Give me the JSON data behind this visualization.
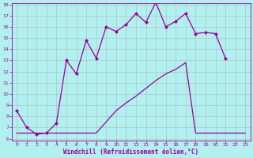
{
  "xlabel": "Windchill (Refroidissement éolien,°C)",
  "x_straight": [
    0,
    1,
    2,
    3,
    4,
    5,
    6,
    7,
    8,
    9,
    10,
    11,
    12,
    13,
    14,
    15,
    16,
    17,
    18,
    19,
    20,
    21,
    22,
    23
  ],
  "y_straight": [
    6.5,
    6.5,
    6.5,
    6.5,
    6.5,
    6.5,
    6.5,
    6.5,
    6.5,
    7.5,
    8.5,
    9.2,
    9.8,
    10.5,
    11.2,
    11.8,
    12.2,
    12.8,
    6.5,
    6.5,
    6.5,
    6.5,
    6.5,
    6.5
  ],
  "x_wavy": [
    0,
    1,
    2,
    3,
    4,
    5,
    6,
    7,
    8,
    9,
    10,
    11,
    12,
    13,
    14,
    15,
    16,
    17,
    18,
    19,
    20,
    21
  ],
  "y_wavy": [
    8.5,
    7.0,
    6.4,
    6.5,
    7.4,
    13.0,
    11.8,
    14.8,
    13.2,
    16.0,
    15.6,
    16.2,
    17.2,
    16.4,
    18.2,
    16.0,
    16.5,
    17.2,
    15.4,
    15.5,
    15.4,
    13.2
  ],
  "line_color": "#990099",
  "bg_color": "#b2f0f0",
  "grid_color": "#aaaaaa",
  "ylim": [
    6,
    18
  ],
  "xlim": [
    -0.5,
    23.5
  ],
  "yticks": [
    6,
    7,
    8,
    9,
    10,
    11,
    12,
    13,
    14,
    15,
    16,
    17,
    18
  ],
  "xticks": [
    0,
    1,
    2,
    3,
    4,
    5,
    6,
    7,
    8,
    9,
    10,
    11,
    12,
    13,
    14,
    15,
    16,
    17,
    18,
    19,
    20,
    21,
    22,
    23
  ]
}
